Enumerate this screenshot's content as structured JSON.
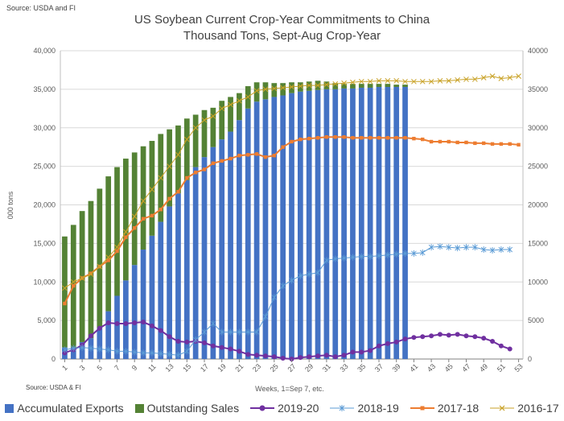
{
  "source_top": "Source: USDA and  FI",
  "source_bottom": "Source: USDA & FI",
  "chart_data": {
    "type": "bar",
    "title": "US Soybean Current Crop-Year Commitments to China",
    "subtitle": "Thousand Tons, Sept-Aug Crop-Year",
    "xlabel": "Weeks, 1=Sep 7, etc.",
    "ylabel": "000 tons",
    "ylim": [
      0,
      40000
    ],
    "y_ticks": [
      "0",
      "5,000",
      "10,000",
      "15,000",
      "20,000",
      "25,000",
      "30,000",
      "35,000",
      "40,000"
    ],
    "y2_ticks": [
      "0",
      "5000",
      "10000",
      "15000",
      "20000",
      "25000",
      "30000",
      "35000",
      "40000"
    ],
    "x_tick_labels": [
      "1",
      "3",
      "5",
      "7",
      "9",
      "11",
      "13",
      "15",
      "17",
      "19",
      "21",
      "23",
      "25",
      "27",
      "29",
      "31",
      "33",
      "35",
      "37",
      "39",
      "41",
      "43",
      "45",
      "47",
      "49",
      "51",
      "53"
    ],
    "x_weeks": [
      1,
      2,
      3,
      4,
      5,
      6,
      7,
      8,
      9,
      10,
      11,
      12,
      13,
      14,
      15,
      16,
      17,
      18,
      19,
      20,
      21,
      22,
      23,
      24,
      25,
      26,
      27,
      28,
      29,
      30,
      31,
      32,
      33,
      34,
      35,
      36,
      37,
      38,
      39,
      40,
      41,
      42,
      43,
      44,
      45,
      46,
      47,
      48,
      49,
      50,
      51,
      52,
      53
    ],
    "grid": true,
    "legend_position": "bottom",
    "series": [
      {
        "name": "Accumulated Exports",
        "kind": "bar",
        "color": "#4472C4",
        "values": [
          1500,
          1500,
          2200,
          2700,
          4000,
          6200,
          8200,
          10200,
          12200,
          14200,
          16000,
          17800,
          19800,
          21500,
          23200,
          24900,
          26200,
          27500,
          28500,
          29500,
          31000,
          32500,
          33400,
          33700,
          34000,
          34200,
          34500,
          34700,
          34800,
          34900,
          35000,
          35000,
          35100,
          35100,
          35200,
          35200,
          35300,
          35300,
          35300,
          35300
        ]
      },
      {
        "name": "Outstanding Sales",
        "kind": "bar",
        "color": "#548235",
        "values": [
          14400,
          15900,
          17000,
          17800,
          18100,
          17500,
          16700,
          15800,
          14600,
          13400,
          12300,
          11400,
          10000,
          8800,
          8000,
          6800,
          6100,
          5100,
          5000,
          4500,
          3500,
          2900,
          2500,
          2200,
          1800,
          1600,
          1400,
          1200,
          1200,
          1200,
          1000,
          800,
          600,
          600,
          500,
          500,
          400,
          400,
          300,
          300
        ]
      },
      {
        "name": "2019-20",
        "kind": "line",
        "marker": "circle",
        "color": "#7030A0",
        "values": [
          800,
          1200,
          1800,
          3000,
          4000,
          4700,
          4600,
          4600,
          4700,
          4800,
          4300,
          3700,
          2900,
          2300,
          2200,
          2300,
          2100,
          1700,
          1500,
          1300,
          1000,
          600,
          500,
          400,
          300,
          100,
          0,
          200,
          300,
          400,
          500,
          300,
          500,
          900,
          900,
          1100,
          1700,
          2000,
          2200,
          2600,
          2800,
          2900,
          3000,
          3200,
          3100,
          3200,
          3000,
          2900,
          2700,
          2300,
          1700,
          1300,
          null
        ]
      },
      {
        "name": "2018-19",
        "kind": "line",
        "marker": "star",
        "color": "#5B9BD5",
        "values": [
          1200,
          1400,
          1500,
          1400,
          1300,
          1200,
          1000,
          1000,
          900,
          800,
          800,
          700,
          600,
          500,
          1000,
          2500,
          3500,
          4600,
          3500,
          3500,
          3500,
          3500,
          3500,
          5500,
          8000,
          9500,
          10200,
          10800,
          11000,
          11200,
          12800,
          13000,
          13100,
          13200,
          13300,
          13300,
          13400,
          13500,
          13600,
          13700,
          13700,
          13800,
          14500,
          14600,
          14500,
          14400,
          14500,
          14500,
          14200,
          14100,
          14200,
          14200,
          null
        ]
      },
      {
        "name": "2017-18",
        "kind": "line",
        "marker": "square",
        "color": "#ED7D31",
        "values": [
          7200,
          9500,
          10500,
          11100,
          12000,
          12800,
          14000,
          15800,
          17000,
          18200,
          18600,
          19400,
          20800,
          21700,
          23500,
          24200,
          24600,
          25400,
          25700,
          26000,
          26400,
          26500,
          26600,
          26200,
          26400,
          27500,
          28200,
          28500,
          28600,
          28700,
          28800,
          28800,
          28800,
          28700,
          28700,
          28700,
          28700,
          28700,
          28700,
          28700,
          28600,
          28500,
          28200,
          28200,
          28200,
          28100,
          28100,
          28000,
          28000,
          27900,
          27900,
          27900,
          27800
        ]
      },
      {
        "name": "2016-17",
        "kind": "line",
        "marker": "x",
        "color": "#C9A227",
        "values": [
          9200,
          10000,
          10500,
          11000,
          12000,
          13200,
          14500,
          16500,
          18500,
          20500,
          22000,
          23500,
          25000,
          26500,
          28500,
          30000,
          31000,
          31500,
          32500,
          33000,
          33500,
          34000,
          34800,
          35000,
          35100,
          35200,
          35300,
          35400,
          35500,
          35500,
          35600,
          35700,
          35800,
          35900,
          36000,
          36000,
          36100,
          36100,
          36100,
          36000,
          36000,
          36000,
          36000,
          36100,
          36100,
          36200,
          36300,
          36300,
          36500,
          36700,
          36400,
          36500,
          36700
        ]
      }
    ]
  }
}
